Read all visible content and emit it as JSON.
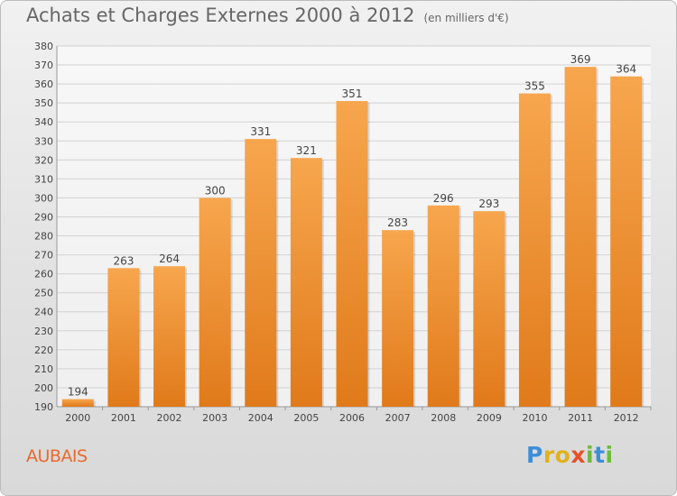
{
  "title": "Achats et Charges Externes 2000 à 2012",
  "unit_note": "(en milliers d'€)",
  "city": "AUBAIS",
  "logo": {
    "text": "Proxiti",
    "letters": [
      {
        "ch": "P",
        "color": "#3b8ed8"
      },
      {
        "ch": "r",
        "color": "#e0b21c"
      },
      {
        "ch": "o",
        "color": "#e0b21c"
      },
      {
        "ch": "x",
        "color": "#e8502a"
      },
      {
        "ch": "i",
        "color": "#6cba3c"
      },
      {
        "ch": "t",
        "color": "#3b8ed8"
      },
      {
        "ch": "i",
        "color": "#6cba3c"
      }
    ]
  },
  "chart_data": {
    "type": "bar",
    "categories": [
      "2000",
      "2001",
      "2002",
      "2003",
      "2004",
      "2005",
      "2006",
      "2007",
      "2008",
      "2009",
      "2010",
      "2011",
      "2012"
    ],
    "values": [
      194,
      263,
      264,
      300,
      331,
      321,
      351,
      283,
      296,
      293,
      355,
      369,
      364
    ],
    "ylim": [
      190,
      380
    ],
    "ytick_step": 10,
    "grid": true,
    "bar_color_top": "#f7a64e",
    "bar_color_bottom": "#e07a1a"
  }
}
